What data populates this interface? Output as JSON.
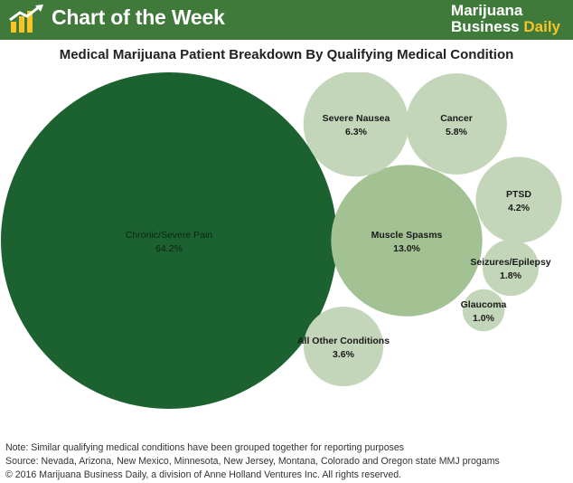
{
  "banner": {
    "title": "Chart of the Week",
    "brand_name": "Marijuana",
    "brand_word2": "Business",
    "brand_word3": "Daily",
    "banner_color": "#3f7a3a",
    "brand_accent_color": "#f7c325"
  },
  "chart_data": {
    "type": "bubble",
    "title": "Medical Marijuana Patient Breakdown By Qualifying Medical Condition",
    "unit": "%",
    "items": [
      {
        "label": "Chronic/Severe Pain",
        "value": 64.2,
        "value_label": "64.2%",
        "color": "#1b6230"
      },
      {
        "label": "Muscle Spasms",
        "value": 13.0,
        "value_label": "13.0%",
        "color": "#a3c293"
      },
      {
        "label": "Severe Nausea",
        "value": 6.3,
        "value_label": "6.3%",
        "color": "#c3d6b9"
      },
      {
        "label": "Cancer",
        "value": 5.8,
        "value_label": "5.8%",
        "color": "#c3d6b9"
      },
      {
        "label": "PTSD",
        "value": 4.2,
        "value_label": "4.2%",
        "color": "#c3d6b9"
      },
      {
        "label": "All Other Conditions",
        "value": 3.6,
        "value_label": "3.6%",
        "color": "#c3d6b9"
      },
      {
        "label": "Seizures/Epilepsy",
        "value": 1.8,
        "value_label": "1.8%",
        "color": "#c3d6b9"
      },
      {
        "label": "Glaucoma",
        "value": 1.0,
        "value_label": "1.0%",
        "color": "#c3d6b9"
      }
    ]
  },
  "footer": {
    "note": "Note: Similar qualifying medical conditions have been grouped together for reporting purposes",
    "source": "Source: Nevada, Arizona, New Mexico, Minnesota, New Jersey, Montana, Colorado and Oregon state MMJ progams",
    "copyright": "© 2016 Marijuana Business Daily, a division of Anne Holland Ventures Inc. All rights reserved."
  }
}
